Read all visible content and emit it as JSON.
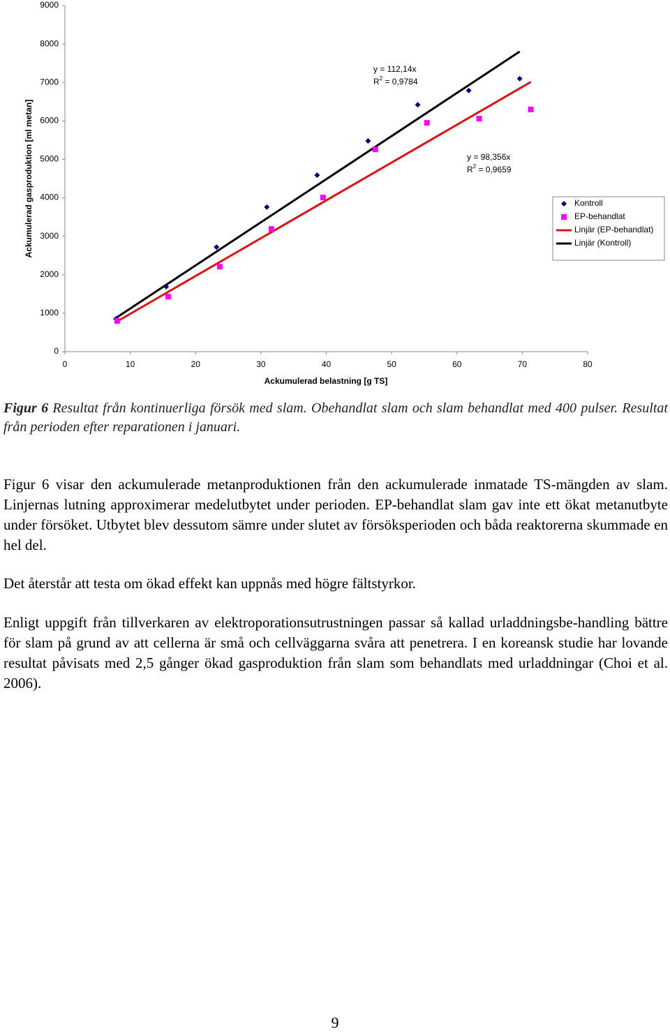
{
  "chart_data": {
    "type": "scatter",
    "xlabel": "Ackumulerad belastning [g TS]",
    "ylabel": "Ackumulerad gasproduktion [ml metan]",
    "xlim": [
      0,
      80
    ],
    "xticks": [
      0,
      10,
      20,
      30,
      40,
      50,
      60,
      70,
      80
    ],
    "ylim": [
      0,
      9000
    ],
    "yticks": [
      0,
      1000,
      2000,
      3000,
      4000,
      5000,
      6000,
      7000,
      8000,
      9000
    ],
    "legend": "right",
    "series": [
      {
        "name": "Kontroll",
        "color": "#000080",
        "marker": "diamond",
        "x": [
          7.8,
          15.5,
          23.2,
          30.9,
          38.6,
          46.4,
          54.0,
          61.8,
          69.6
        ],
        "values": [
          850,
          1690,
          2720,
          3760,
          4590,
          5480,
          6420,
          6790,
          7100
        ]
      },
      {
        "name": "EP-behandlat",
        "color": "#ff00ff",
        "marker": "square",
        "x": [
          8.0,
          15.8,
          23.7,
          31.6,
          39.5,
          47.5,
          55.4,
          63.4,
          71.3
        ],
        "values": [
          800,
          1430,
          2210,
          3190,
          4010,
          5260,
          5950,
          6060,
          6300
        ]
      },
      {
        "name": "Linjär (EP-behandlat)",
        "color": "#dd1111",
        "marker": "line",
        "x": [
          8.0,
          71.3
        ],
        "values": [
          787,
          7013
        ]
      },
      {
        "name": "Linjär (Kontroll)",
        "color": "#000000",
        "marker": "line",
        "x": [
          7.8,
          69.6
        ],
        "values": [
          875,
          7805
        ]
      }
    ],
    "annotations": [
      {
        "equation": "y = 112,14x",
        "r_label": "R",
        "r_sup": "2",
        "r_value": " = 0,9784"
      },
      {
        "equation": "y = 98,356x",
        "r_label": "R",
        "r_sup": "2",
        "r_value": " = 0,9659"
      }
    ]
  },
  "caption": {
    "label": "Figur 6",
    "text": " Resultat från kontinuerliga försök med slam. Obehandlat slam och slam behandlat med 400 pulser. Resultat från perioden efter reparationen i januari."
  },
  "paragraphs": [
    "Figur 6 visar den ackumulerade metanproduktionen från den ackumulerade inmatade TS-mängden av slam. Linjernas lutning approximerar medelutbytet under perioden. EP-behandlat slam gav inte ett ökat metanutbyte under försöket. Utbytet blev dessutom sämre under slutet av försöksperioden och båda reaktorerna skummade en hel del.",
    "Det återstår att testa om ökad effekt kan uppnås med högre fältstyrkor.",
    "Enligt uppgift från tillverkaren av elektroporationsutrustningen passar så kallad urladdningsbe-handling bättre för slam på grund av att cellerna är små och cellväggarna svåra att penetrera. I en koreansk studie har lovande resultat påvisats med 2,5 gånger ökad gasproduktion från slam som behandlats med urladdningar (Choi et al. 2006)."
  ],
  "page_number": "9"
}
